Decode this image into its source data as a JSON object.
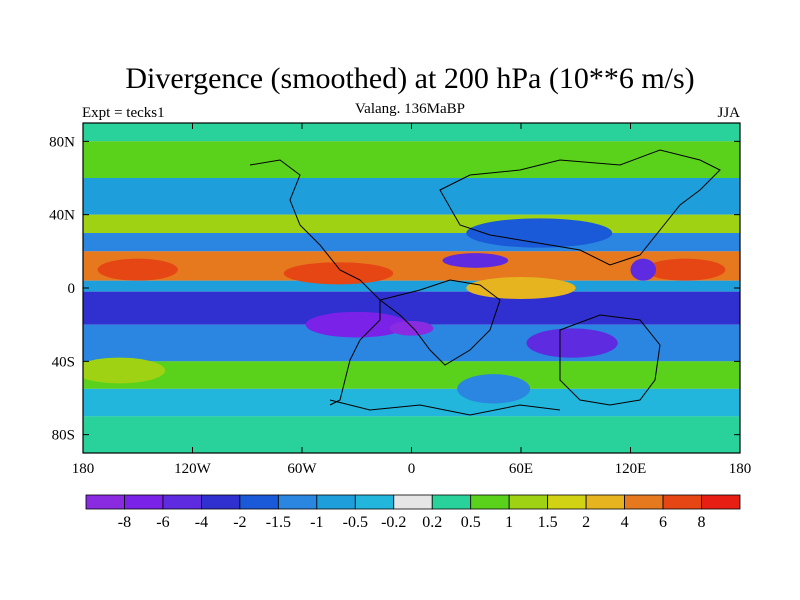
{
  "chart_data": {
    "type": "heatmap",
    "title": "Divergence (smoothed) at 200 hPa (10**6 m/s)",
    "left_label": "Expt = tecks1",
    "center_label": "Valang. 136MaBP",
    "right_label": "JJA",
    "xlim": [
      -180,
      180
    ],
    "ylim": [
      -90,
      90
    ],
    "x_ticks": [
      {
        "value": -180,
        "label": "180"
      },
      {
        "value": -120,
        "label": "120W"
      },
      {
        "value": -60,
        "label": "60W"
      },
      {
        "value": 0,
        "label": "0"
      },
      {
        "value": 60,
        "label": "60E"
      },
      {
        "value": 120,
        "label": "120E"
      },
      {
        "value": 180,
        "label": "180"
      }
    ],
    "y_ticks": [
      {
        "value": 80,
        "label": "80N"
      },
      {
        "value": 40,
        "label": "40N"
      },
      {
        "value": 0,
        "label": "0"
      },
      {
        "value": -40,
        "label": "40S"
      },
      {
        "value": -80,
        "label": "80S"
      }
    ],
    "colorbar": {
      "colors": [
        "#8a2be2",
        "#7a22e8",
        "#5f2be0",
        "#3030d0",
        "#1a5ad8",
        "#2a86e0",
        "#1e9fdc",
        "#22b6dc",
        "#e6e6e6",
        "#28d29a",
        "#5ad21c",
        "#a0d214",
        "#d2d214",
        "#e6b41e",
        "#e6781e",
        "#e64614",
        "#e61e14"
      ],
      "levels": [
        "-8",
        "-6",
        "-4",
        "-2",
        "-1.5",
        "-1",
        "-0.5",
        "-0.2",
        "0.2",
        "0.5",
        "1",
        "1.5",
        "2",
        "4",
        "6",
        "8"
      ]
    },
    "field_bands": [
      {
        "lat_from": 90,
        "lat_to": 80,
        "level": "0.2"
      },
      {
        "lat_from": 80,
        "lat_to": 60,
        "level": "0.5"
      },
      {
        "lat_from": 60,
        "lat_to": 40,
        "level": "-0.5"
      },
      {
        "lat_from": 40,
        "lat_to": 30,
        "level": "1"
      },
      {
        "lat_from": 30,
        "lat_to": 20,
        "level": "-1"
      },
      {
        "lat_from": 20,
        "lat_to": 4,
        "level": "4"
      },
      {
        "lat_from": 4,
        "lat_to": -2,
        "level": "-0.5"
      },
      {
        "lat_from": -2,
        "lat_to": -20,
        "level": "-2"
      },
      {
        "lat_from": -20,
        "lat_to": -40,
        "level": "-1"
      },
      {
        "lat_from": -40,
        "lat_to": -55,
        "level": "0.5"
      },
      {
        "lat_from": -55,
        "lat_to": -70,
        "level": "-0.2"
      },
      {
        "lat_from": -70,
        "lat_to": -90,
        "level": "0.2"
      }
    ],
    "field_blobs": [
      {
        "lon": -40,
        "lat": 8,
        "rlon": 30,
        "rlat": 6,
        "level": "6"
      },
      {
        "lon": -150,
        "lat": 10,
        "rlon": 22,
        "rlat": 6,
        "level": "6"
      },
      {
        "lon": 150,
        "lat": 10,
        "rlon": 22,
        "rlat": 6,
        "level": "6"
      },
      {
        "lon": -30,
        "lat": -20,
        "rlon": 28,
        "rlat": 7,
        "level": "-6"
      },
      {
        "lon": 0,
        "lat": -22,
        "rlon": 12,
        "rlat": 4,
        "level": "-8"
      },
      {
        "lon": 35,
        "lat": 15,
        "rlon": 18,
        "rlat": 4,
        "level": "-4"
      },
      {
        "lon": 127,
        "lat": 10,
        "rlon": 7,
        "rlat": 6,
        "level": "-4"
      },
      {
        "lon": 88,
        "lat": -30,
        "rlon": 25,
        "rlat": 8,
        "level": "-4"
      },
      {
        "lon": 60,
        "lat": 0,
        "rlon": 30,
        "rlat": 6,
        "level": "2"
      },
      {
        "lon": 70,
        "lat": 30,
        "rlon": 40,
        "rlat": 8,
        "level": "-1.5"
      },
      {
        "lon": 45,
        "lat": -55,
        "rlon": 20,
        "rlat": 8,
        "level": "-1"
      },
      {
        "lon": -160,
        "lat": -45,
        "rlon": 25,
        "rlat": 7,
        "level": "1"
      }
    ]
  }
}
